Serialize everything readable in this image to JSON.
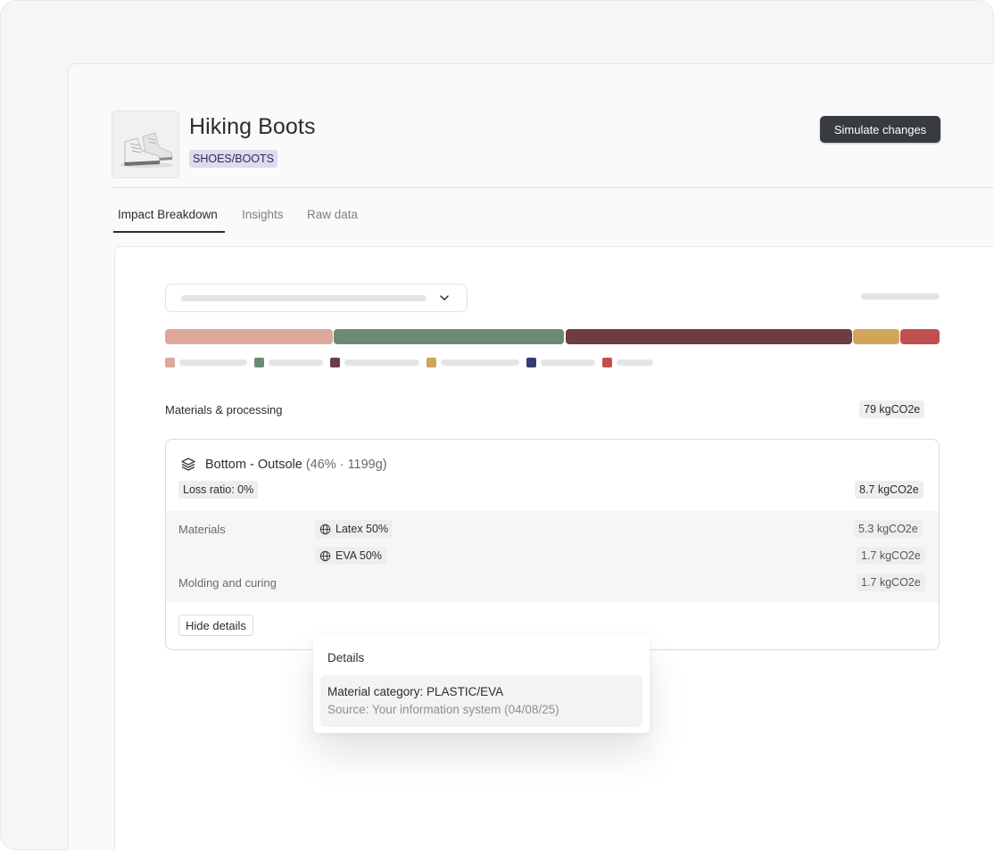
{
  "product": {
    "title": "Hiking Boots",
    "category": "SHOES/BOOTS",
    "simulate_label": "Simulate changes"
  },
  "tabs": [
    {
      "label": "Impact Breakdown",
      "active": true
    },
    {
      "label": "Insights",
      "active": false
    },
    {
      "label": "Raw data",
      "active": false
    }
  ],
  "breakdown": {
    "segment_colors": [
      "#dba899",
      "#6b8a76",
      "#6e3c44",
      "#d1a55a",
      "#c0504f"
    ],
    "legend_colors": [
      "#dba899",
      "#6b8a76",
      "#6e3c44",
      "#d1a55a",
      "#353c73",
      "#c0504f"
    ]
  },
  "section": {
    "label": "Materials & processing",
    "total": "79 kgCO2e"
  },
  "component": {
    "name": "Bottom - Outsole",
    "meta": "(46% · 1199g)",
    "loss_ratio": "Loss ratio: 0%",
    "impact": "8.7 kgCO2e",
    "materials_label": "Materials",
    "materials": [
      {
        "name": "Latex 50%",
        "impact": "5.3 kgCO2e"
      },
      {
        "name": "EVA 50%",
        "impact": "1.7 kgCO2e"
      }
    ],
    "process_label": "Molding and curing",
    "process_impact": "1.7 kgCO2e",
    "hide_details_label": "Hide details"
  },
  "popover": {
    "title": "Details",
    "category": "Material category: PLASTIC/EVA",
    "source": "Source: Your information system (04/08/25)"
  }
}
